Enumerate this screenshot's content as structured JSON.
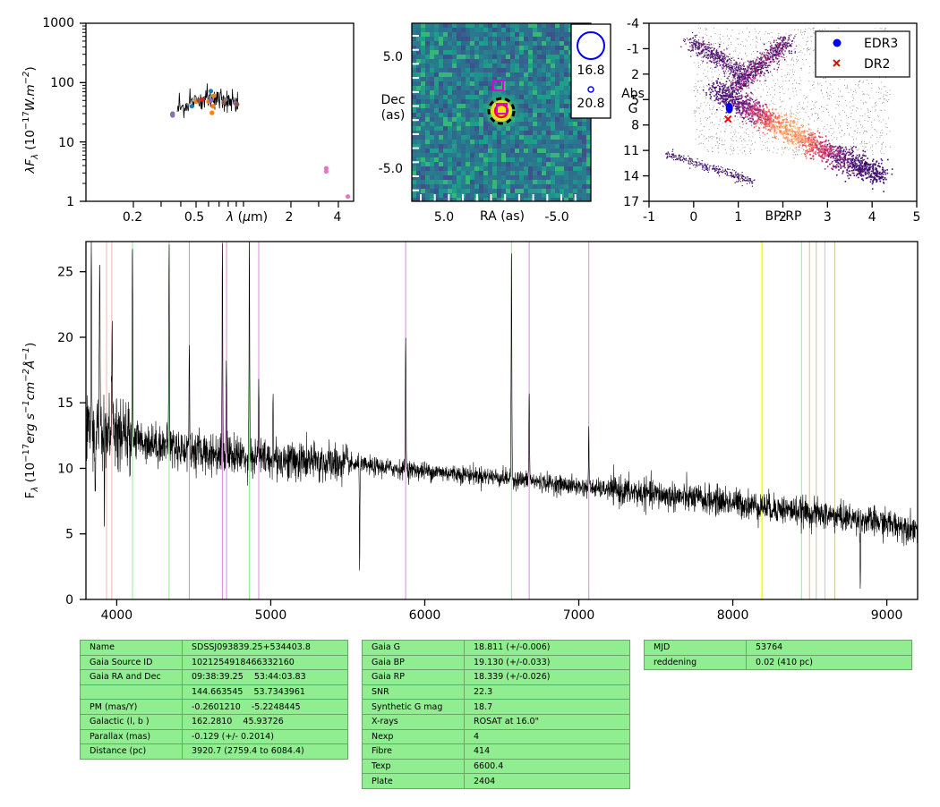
{
  "sed": {
    "ylabel": "λF_λ (10^{-17}W.m^{-2})",
    "xlabel": "λ (μm)",
    "y_ticks": [
      "1000",
      "100",
      "10",
      "1"
    ],
    "x_ticks": [
      "0.2",
      "0.5",
      "2",
      "4"
    ],
    "points": [
      {
        "x": 0.355,
        "y": 28,
        "color": "#8a6fb0"
      },
      {
        "x": 0.355,
        "y": 30,
        "color": "#8a6fb0"
      },
      {
        "x": 0.354,
        "y": 29,
        "color": "#8a6fb0"
      },
      {
        "x": 0.47,
        "y": 40,
        "color": "#1f77b4"
      },
      {
        "x": 0.5,
        "y": 48,
        "color": "#ff7f0e"
      },
      {
        "x": 0.52,
        "y": 50,
        "color": "#8c564b"
      },
      {
        "x": 0.55,
        "y": 52,
        "color": "#d62728"
      },
      {
        "x": 0.6,
        "y": 48,
        "color": "#ff7f0e"
      },
      {
        "x": 0.62,
        "y": 72,
        "color": "#1f77b4"
      },
      {
        "x": 0.63,
        "y": 31,
        "color": "#ff7f0e"
      },
      {
        "x": 0.64,
        "y": 40,
        "color": "#ff7f0e"
      },
      {
        "x": 0.65,
        "y": 60,
        "color": "#ff7f0e"
      },
      {
        "x": 0.62,
        "y": 50,
        "color": "#9467bd"
      },
      {
        "x": 0.75,
        "y": 46,
        "color": "#8c564b"
      },
      {
        "x": 0.77,
        "y": 52,
        "color": "#7f7f7f"
      },
      {
        "x": 0.89,
        "y": 45,
        "color": "#9467bd"
      },
      {
        "x": 0.91,
        "y": 43,
        "color": "#8c564b"
      },
      {
        "x": 3.35,
        "y": 3.2,
        "color": "#e377c2"
      },
      {
        "x": 3.35,
        "y": 3.6,
        "color": "#e377c2"
      },
      {
        "x": 4.6,
        "y": 1.2,
        "color": "#e377c2"
      }
    ],
    "xlim": [
      0.1,
      5.0
    ],
    "ylim": [
      1,
      1000
    ]
  },
  "image_panel": {
    "ylabel_1": "Dec",
    "ylabel_2": "(as)",
    "xlabel": "RA (as)",
    "y_ticks": [
      "5.0",
      "-5.0"
    ],
    "x_ticks": [
      "5.0",
      "-5.0"
    ],
    "legend_mag_big": "16.8",
    "legend_mag_small": "20.8"
  },
  "hrd": {
    "ylabel_1": "Abs",
    "ylabel_2": "G",
    "xlabel": "BP-RP",
    "y_ticks": [
      "-4",
      "-1",
      "2",
      "5",
      "8",
      "11",
      "14",
      "17"
    ],
    "x_ticks": [
      "-1",
      "0",
      "1",
      "2",
      "3",
      "4",
      "5"
    ],
    "legend": [
      {
        "label": "EDR3",
        "marker": "circle",
        "color": "#0000ff"
      },
      {
        "label": "DR2",
        "marker": "x",
        "color": "#ff0000"
      }
    ],
    "edr3_point": {
      "x": 0.8,
      "y": 6.0
    },
    "dr2_point": {
      "x": 0.77,
      "y": 7.3
    },
    "xlim": [
      -1,
      5
    ],
    "ylim": [
      -4,
      17
    ]
  },
  "spectrum": {
    "ylabel": "F_λ (10^{-17}erg s^{-1}cm^{-2}Å^{-1})",
    "y_ticks": [
      "0",
      "5",
      "10",
      "15",
      "20",
      "25"
    ],
    "x_ticks": [
      "4000",
      "5000",
      "6000",
      "7000",
      "8000",
      "9000"
    ],
    "xlim": [
      3800,
      9200
    ],
    "ylim": [
      0,
      27.3
    ],
    "continuum": [
      [
        3800,
        13.0
      ],
      [
        4000,
        12.5
      ],
      [
        4500,
        11.3
      ],
      [
        5000,
        10.7
      ],
      [
        5500,
        10.3
      ],
      [
        6000,
        9.8
      ],
      [
        6500,
        9.3
      ],
      [
        7000,
        8.6
      ],
      [
        7500,
        8.0
      ],
      [
        8000,
        7.4
      ],
      [
        8500,
        6.6
      ],
      [
        9000,
        5.8
      ],
      [
        9200,
        5.4
      ]
    ],
    "emission_lines": [
      {
        "x": 3835,
        "h": 27
      },
      {
        "x": 3889,
        "h": 27
      },
      {
        "x": 3970,
        "h": 23
      },
      {
        "x": 4102,
        "h": 27
      },
      {
        "x": 4340,
        "h": 27
      },
      {
        "x": 4471,
        "h": 20
      },
      {
        "x": 4686,
        "h": 27
      },
      {
        "x": 4712,
        "h": 19
      },
      {
        "x": 4861,
        "h": 27
      },
      {
        "x": 4922,
        "h": 17
      },
      {
        "x": 5015,
        "h": 15
      },
      {
        "x": 5876,
        "h": 20.5
      },
      {
        "x": 6563,
        "h": 27
      },
      {
        "x": 6678,
        "h": 16
      },
      {
        "x": 7065,
        "h": 12.5
      }
    ],
    "absorption_features": [
      {
        "x": 5577,
        "h": 1.8
      },
      {
        "x": 3860,
        "h": 7
      },
      {
        "x": 3920,
        "h": 6.8
      },
      {
        "x": 8828,
        "h": 0.3
      }
    ],
    "marker_lines": [
      {
        "x": 3934,
        "color": "#ffb0b0"
      },
      {
        "x": 3968,
        "color": "#ffb0b0"
      },
      {
        "x": 4102,
        "color": "#90ee90"
      },
      {
        "x": 4340,
        "color": "#90ee90"
      },
      {
        "x": 4861,
        "color": "#90ee90"
      },
      {
        "x": 6563,
        "color": "#90ee90"
      },
      {
        "x": 4471,
        "color": "#dd88dd"
      },
      {
        "x": 4686,
        "color": "#dd88dd"
      },
      {
        "x": 4713,
        "color": "#dd88dd"
      },
      {
        "x": 4922,
        "color": "#dd88dd"
      },
      {
        "x": 5876,
        "color": "#dd88dd"
      },
      {
        "x": 6678,
        "color": "#dd88dd"
      },
      {
        "x": 7065,
        "color": "#dd88dd"
      },
      {
        "x": 8190,
        "color": "#ffff00"
      },
      {
        "x": 8446,
        "color": "#90ee90"
      },
      {
        "x": 8498,
        "color": "#d0c0a0"
      },
      {
        "x": 8542,
        "color": "#d0c0a0"
      },
      {
        "x": 8598,
        "color": "#90ee90"
      },
      {
        "x": 8662,
        "color": "#d0c0a0"
      }
    ]
  },
  "table1": [
    [
      "Name",
      "SDSSJ093839.25+534403.8"
    ],
    [
      "Gaia Source ID",
      "1021254918466332160"
    ],
    [
      "Gaia RA and Dec",
      "09:38:39.25    53:44:03.83"
    ],
    [
      "",
      "144.663545    53.7343961"
    ],
    [
      "PM (mas/Y)",
      "-0.2601210    -5.2248445"
    ],
    [
      "Galactic (l, b )",
      "162.2810    45.93726"
    ],
    [
      "Parallax (mas)",
      "-0.129 (+/- 0.2014)"
    ],
    [
      "Distance (pc)",
      "3920.7 (2759.4 to 6084.4)"
    ]
  ],
  "table2": [
    [
      "Gaia G",
      "18.811 (+/-0.006)"
    ],
    [
      "Gaia BP",
      "19.130 (+/-0.033)"
    ],
    [
      "Gaia RP",
      "18.339 (+/-0.026)"
    ],
    [
      "SNR",
      "22.3"
    ],
    [
      "Synthetic G mag",
      "18.7"
    ],
    [
      "X-rays",
      "ROSAT at 16.0\""
    ],
    [
      "Nexp",
      "4"
    ],
    [
      "Fibre",
      "414"
    ],
    [
      "Texp",
      "6600.4"
    ],
    [
      "Plate",
      "2404"
    ]
  ],
  "table3": [
    [
      "MJD",
      "53764"
    ],
    [
      "reddening",
      "0.02 (410 pc)"
    ]
  ]
}
